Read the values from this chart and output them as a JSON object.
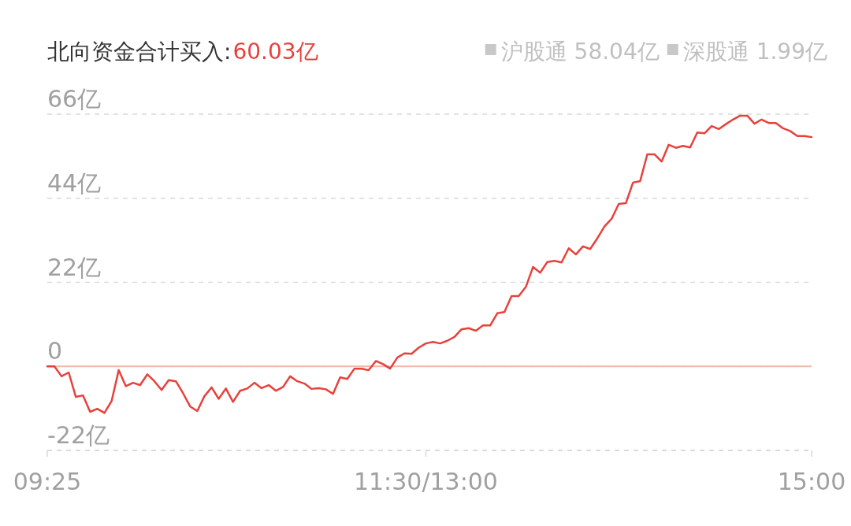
{
  "chart_data": {
    "type": "line",
    "title": "北向资金合计买入:",
    "annotations": [
      "60.03亿",
      "沪股通 58.04亿",
      "深股通 1.99亿"
    ],
    "categories": [
      "09:25",
      null,
      null,
      null,
      null,
      null,
      null,
      null,
      null,
      null,
      null,
      null,
      null,
      null,
      null,
      null,
      null,
      null,
      null,
      null,
      null,
      null,
      null,
      null,
      null,
      null,
      null,
      null,
      null,
      null,
      null,
      null,
      null,
      null,
      null,
      null,
      null,
      null,
      null,
      null,
      null,
      null,
      null,
      null,
      null,
      null,
      null,
      null,
      null,
      null,
      null,
      null,
      null,
      "11:30/13:00",
      null,
      null,
      null,
      null,
      null,
      null,
      null,
      null,
      null,
      null,
      null,
      null,
      null,
      null,
      null,
      null,
      null,
      null,
      null,
      null,
      null,
      null,
      null,
      null,
      null,
      null,
      null,
      null,
      null,
      null,
      null,
      null,
      null,
      null,
      null,
      null,
      null,
      null,
      null,
      null,
      null,
      null,
      null,
      null,
      null,
      null,
      null,
      null,
      null,
      null,
      null,
      null,
      null,
      "15:00"
    ],
    "ylim": [
      -22,
      66
    ],
    "yticks": [
      {
        "value": 66,
        "label": "66亿"
      },
      {
        "value": 44,
        "label": "44亿"
      },
      {
        "value": 22,
        "label": "22亿"
      },
      0,
      {
        "value": -22,
        "label": "-22亿"
      }
    ],
    "grid": "y",
    "ref_lines": [
      {
        "axis": "y",
        "value": 0,
        "color": "#f2b8ae"
      }
    ],
    "series": [
      {
        "color": "#e8413c",
        "values": [
          0,
          0,
          -2.6,
          -1.6,
          -8.0,
          -7.6,
          -11.9,
          -11.1,
          -12.2,
          -9.1,
          -1.0,
          -5.2,
          -4.3,
          -4.9,
          -2.1,
          -3.9,
          -6.2,
          -3.6,
          -3.9,
          -7.0,
          -10.5,
          -11.7,
          -7.8,
          -5.5,
          -8.5,
          -5.8,
          -9.3,
          -6.4,
          -5.8,
          -4.3,
          -5.7,
          -4.9,
          -6.4,
          -5.4,
          -2.6,
          -3.9,
          -4.5,
          -5.9,
          -5.7,
          -6.0,
          -7.2,
          -2.9,
          -3.3,
          -0.6,
          -0.6,
          -1.0,
          1.4,
          0.6,
          -0.6,
          2.3,
          3.4,
          3.3,
          4.9,
          6.0,
          6.4,
          6.0,
          6.7,
          7.7,
          9.7,
          10.0,
          9.3,
          10.7,
          10.7,
          13.9,
          14.2,
          18.4,
          18.4,
          20.8,
          26.0,
          24.5,
          27.3,
          27.6,
          27.2,
          30.9,
          29.3,
          31.4,
          30.7,
          33.5,
          36.6,
          38.6,
          42.5,
          42.7,
          48.1,
          48.5,
          55.5,
          55.5,
          53.6,
          58.0,
          57.2,
          57.7,
          57.3,
          61.2,
          61.0,
          62.9,
          62.1,
          63.4,
          64.6,
          65.6,
          65.6,
          63.5,
          64.6,
          63.7,
          63.7,
          62.3,
          61.6,
          60.3,
          60.3,
          60.0
        ]
      }
    ]
  }
}
